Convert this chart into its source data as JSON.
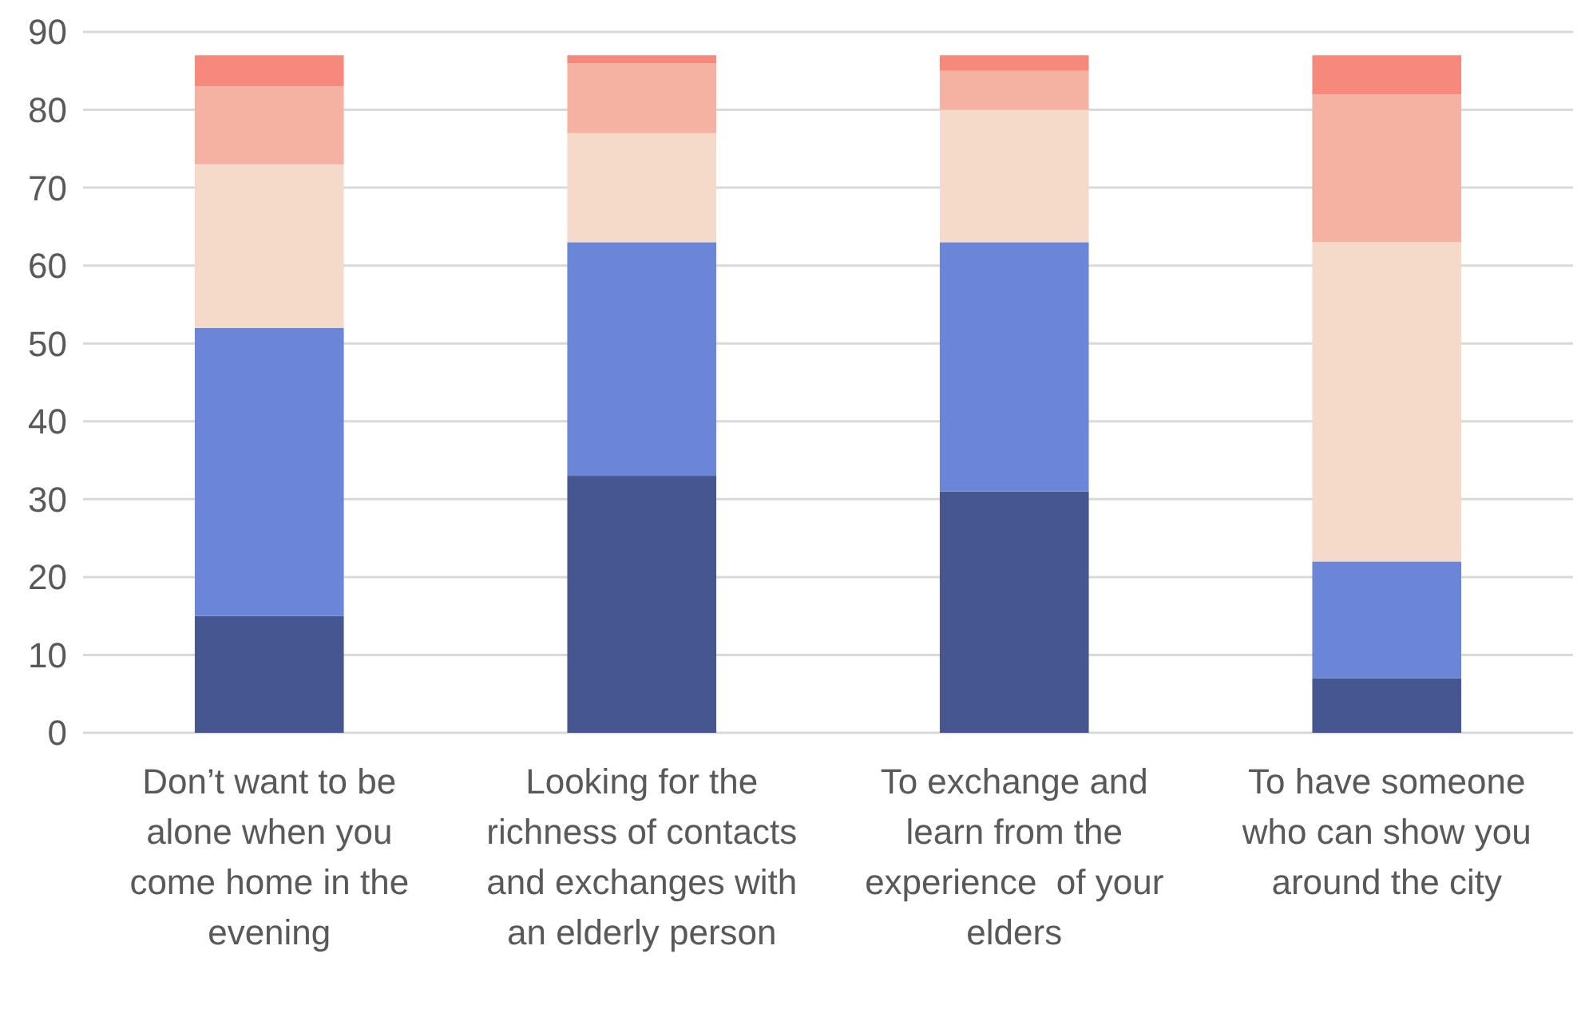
{
  "chart_data": {
    "type": "bar",
    "stacked": true,
    "categories": [
      "Don’t want to be alone when you come home in the evening",
      "Looking for the richness of contacts and exchanges with an elderly person",
      "To exchange and learn from the experience  of your elders",
      "To have someone who can show you around the city"
    ],
    "series": [
      {
        "color": "#465690",
        "values": [
          15,
          33,
          31,
          7
        ]
      },
      {
        "color": "#6b86d8",
        "values": [
          37,
          30,
          32,
          15
        ]
      },
      {
        "color": "#f6dac9",
        "values": [
          21,
          14,
          17,
          41
        ]
      },
      {
        "color": "#f5b1a2",
        "values": [
          10,
          9,
          5,
          19
        ]
      },
      {
        "color": "#f7897c",
        "values": [
          4,
          1,
          2,
          5
        ]
      }
    ],
    "ylim": [
      0,
      90
    ],
    "yticks": [
      0,
      10,
      20,
      30,
      40,
      50,
      60,
      70,
      80,
      90
    ],
    "grid": "y"
  }
}
